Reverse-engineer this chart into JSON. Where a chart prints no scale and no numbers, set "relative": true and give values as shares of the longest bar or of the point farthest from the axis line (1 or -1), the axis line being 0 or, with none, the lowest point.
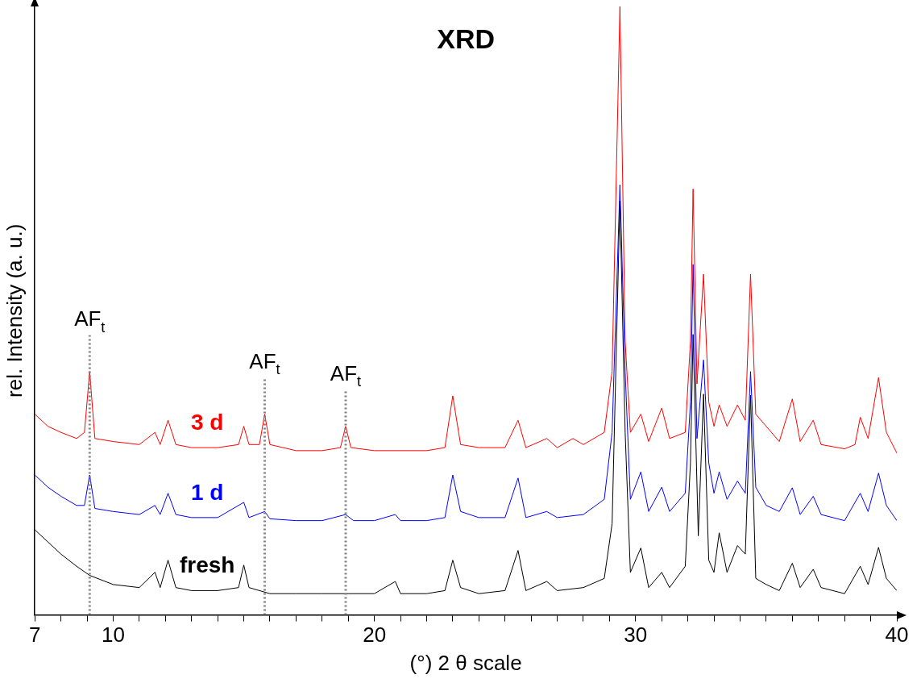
{
  "chart_data": {
    "type": "line",
    "title": "XRD",
    "xlabel": "(°) 2 θ scale",
    "ylabel": "rel. Intensity (a. u.)",
    "relative": true,
    "xlim": [
      7,
      40
    ],
    "xticks": [
      7,
      {
        "value": 8,
        "label": null
      },
      {
        "value": 9,
        "label": null
      },
      10,
      {
        "value": 11,
        "label": null
      },
      {
        "value": 12,
        "label": null
      },
      {
        "value": 13,
        "label": null
      },
      {
        "value": 14,
        "label": null
      },
      {
        "value": 15,
        "label": null
      },
      {
        "value": 16,
        "label": null
      },
      {
        "value": 17,
        "label": null
      },
      {
        "value": 18,
        "label": null
      },
      {
        "value": 19,
        "label": null
      },
      20,
      {
        "value": 21,
        "label": null
      },
      {
        "value": 22,
        "label": null
      },
      {
        "value": 23,
        "label": null
      },
      {
        "value": 24,
        "label": null
      },
      {
        "value": 25,
        "label": null
      },
      {
        "value": 26,
        "label": null
      },
      {
        "value": 27,
        "label": null
      },
      {
        "value": 28,
        "label": null
      },
      {
        "value": 29,
        "label": null
      },
      30,
      {
        "value": 31,
        "label": null
      },
      {
        "value": 32,
        "label": null
      },
      {
        "value": 33,
        "label": null
      },
      {
        "value": 34,
        "label": null
      },
      {
        "value": 35,
        "label": null
      },
      {
        "value": 36,
        "label": null
      },
      {
        "value": 37,
        "label": null
      },
      {
        "value": 38,
        "label": null
      },
      {
        "value": 39,
        "label": null
      },
      40
    ],
    "grid": false,
    "legend": false,
    "marker": "none",
    "line_style": "solid",
    "series": [
      {
        "name": "3 d",
        "color": "#ff0000",
        "x": [
          7,
          7.5,
          8,
          8.6,
          8.9,
          9.1,
          9.3,
          10,
          11,
          11.6,
          11.8,
          12.1,
          12.4,
          13,
          14,
          14.8,
          15,
          15.2,
          15.6,
          15.8,
          16,
          17,
          18,
          18.7,
          18.9,
          19.1,
          20,
          21,
          22,
          22.7,
          23.0,
          23.3,
          24,
          25,
          25.5,
          25.8,
          26.6,
          27,
          27.6,
          28,
          28.8,
          29.1,
          29.4,
          29.6,
          29.8,
          30.2,
          30.5,
          31.0,
          31.3,
          31.9,
          32.1,
          32.2,
          32.35,
          32.6,
          32.8,
          33.0,
          33.2,
          33.5,
          33.9,
          34.2,
          34.4,
          34.6,
          35,
          35.5,
          36.0,
          36.3,
          36.8,
          37.1,
          38,
          38.4,
          38.6,
          38.9,
          39.3,
          39.6,
          40
        ],
        "values": [
          0.33,
          0.31,
          0.3,
          0.29,
          0.3,
          0.4,
          0.29,
          0.285,
          0.28,
          0.3,
          0.28,
          0.32,
          0.28,
          0.275,
          0.275,
          0.28,
          0.31,
          0.28,
          0.28,
          0.33,
          0.28,
          0.27,
          0.27,
          0.275,
          0.31,
          0.275,
          0.27,
          0.27,
          0.27,
          0.275,
          0.36,
          0.28,
          0.275,
          0.275,
          0.32,
          0.275,
          0.29,
          0.275,
          0.29,
          0.28,
          0.3,
          0.4,
          1.0,
          0.45,
          0.3,
          0.33,
          0.285,
          0.34,
          0.29,
          0.3,
          0.45,
          0.7,
          0.38,
          0.56,
          0.35,
          0.31,
          0.345,
          0.31,
          0.345,
          0.32,
          0.56,
          0.33,
          0.31,
          0.285,
          0.355,
          0.285,
          0.32,
          0.28,
          0.273,
          0.28,
          0.325,
          0.29,
          0.39,
          0.3,
          0.266
        ]
      },
      {
        "name": "1 d",
        "color": "#0000ff",
        "x": [
          7,
          7.5,
          8,
          8.6,
          8.9,
          9.1,
          9.3,
          10,
          11,
          11.6,
          11.8,
          12.1,
          12.4,
          13,
          14,
          15,
          15.2,
          15.8,
          16,
          17,
          18,
          18.9,
          19.2,
          20,
          20.8,
          21,
          22,
          22.7,
          23.0,
          23.3,
          24,
          25,
          25.5,
          25.8,
          26.6,
          27,
          28,
          28.8,
          29.1,
          29.4,
          29.6,
          29.8,
          30.2,
          30.5,
          31.0,
          31.3,
          31.9,
          32.1,
          32.2,
          32.35,
          32.6,
          32.8,
          33.0,
          33.2,
          33.5,
          33.9,
          34.2,
          34.4,
          34.6,
          35,
          35.5,
          36.0,
          36.3,
          36.8,
          37.1,
          38,
          38.6,
          38.9,
          39.3,
          39.6,
          40
        ],
        "values": [
          0.23,
          0.21,
          0.195,
          0.18,
          0.18,
          0.23,
          0.175,
          0.17,
          0.165,
          0.18,
          0.165,
          0.2,
          0.165,
          0.16,
          0.16,
          0.185,
          0.16,
          0.17,
          0.158,
          0.155,
          0.155,
          0.165,
          0.155,
          0.155,
          0.165,
          0.155,
          0.155,
          0.16,
          0.23,
          0.17,
          0.16,
          0.16,
          0.225,
          0.16,
          0.17,
          0.16,
          0.165,
          0.19,
          0.3,
          0.707,
          0.4,
          0.19,
          0.235,
          0.17,
          0.21,
          0.17,
          0.2,
          0.35,
          0.576,
          0.29,
          0.419,
          0.25,
          0.2,
          0.235,
          0.19,
          0.22,
          0.2,
          0.4,
          0.21,
          0.18,
          0.17,
          0.209,
          0.165,
          0.195,
          0.165,
          0.155,
          0.2,
          0.17,
          0.233,
          0.18,
          0.155
        ]
      },
      {
        "name": "fresh",
        "color": "#000000",
        "x": [
          7,
          7.5,
          8,
          8.6,
          9.1,
          10,
          11,
          11.6,
          11.8,
          12.1,
          12.4,
          13,
          14,
          14.8,
          15,
          15.2,
          16,
          17,
          18,
          19,
          20,
          20.8,
          21,
          22,
          22.7,
          23.0,
          23.3,
          24,
          25,
          25.5,
          25.8,
          26.6,
          27,
          28,
          28.8,
          29.1,
          29.4,
          29.6,
          29.8,
          30.2,
          30.5,
          31.0,
          31.3,
          31.9,
          32.1,
          32.2,
          32.4,
          32.6,
          32.8,
          33.0,
          33.2,
          33.5,
          33.9,
          34.2,
          34.4,
          34.6,
          35,
          35.5,
          36.0,
          36.3,
          36.8,
          37.1,
          38,
          38.6,
          38.9,
          39.3,
          39.6,
          40
        ],
        "values": [
          0.14,
          0.12,
          0.1,
          0.08,
          0.065,
          0.05,
          0.045,
          0.07,
          0.045,
          0.09,
          0.045,
          0.04,
          0.04,
          0.045,
          0.082,
          0.045,
          0.035,
          0.035,
          0.035,
          0.035,
          0.035,
          0.055,
          0.035,
          0.035,
          0.04,
          0.09,
          0.045,
          0.035,
          0.04,
          0.106,
          0.04,
          0.055,
          0.04,
          0.045,
          0.06,
          0.15,
          0.68,
          0.3,
          0.07,
          0.11,
          0.045,
          0.07,
          0.045,
          0.08,
          0.25,
          0.461,
          0.13,
          0.363,
          0.09,
          0.07,
          0.135,
          0.07,
          0.114,
          0.1,
          0.361,
          0.06,
          0.05,
          0.04,
          0.085,
          0.045,
          0.075,
          0.045,
          0.035,
          0.08,
          0.05,
          0.111,
          0.06,
          0.04
        ]
      }
    ],
    "ref_lines": [
      {
        "axis": "x",
        "value": 9.1,
        "label": "AF$_{t}$",
        "color": "#808080",
        "line_style": "dotted"
      },
      {
        "axis": "x",
        "value": 15.8,
        "label": "AF$_{t}$",
        "color": "#808080",
        "line_style": "dotted"
      },
      {
        "axis": "x",
        "value": 18.9,
        "label": "AF$_{t}$",
        "color": "#808080",
        "line_style": "dotted"
      }
    ]
  }
}
